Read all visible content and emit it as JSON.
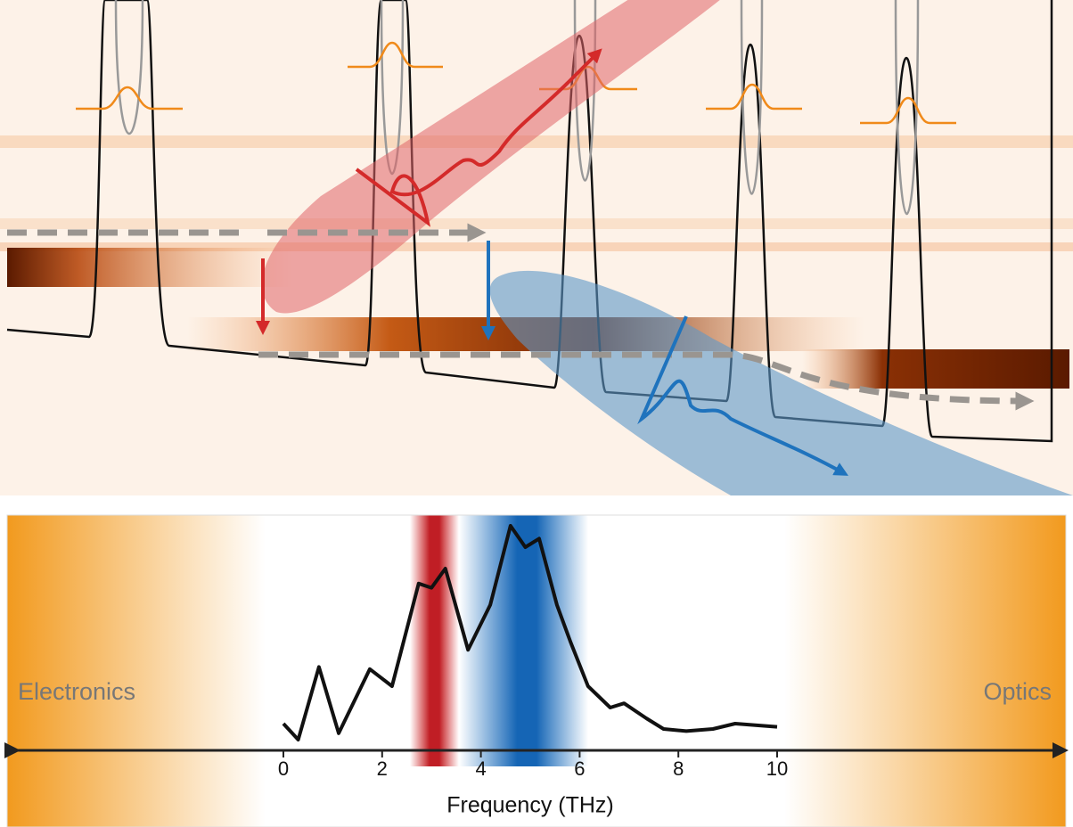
{
  "chart_data": {
    "type": "line",
    "xlabel": "Frequency (THz)",
    "annotations": [
      "Electronics",
      "Optics"
    ],
    "x": [
      0,
      0.3,
      0.72,
      1.12,
      1.75,
      2.2,
      2.74,
      3.0,
      3.28,
      3.74,
      4.19,
      4.6,
      4.9,
      5.18,
      5.54,
      5.81,
      6.17,
      6.62,
      6.9,
      7.35,
      7.7,
      8.16,
      8.7,
      9.15,
      10
    ],
    "series": [
      {
        "color": "#111111",
        "values": [
          0.075,
          0,
          0.34,
          0.03,
          0.33,
          0.25,
          0.73,
          0.71,
          0.8,
          0.42,
          0.63,
          1.0,
          0.9,
          0.94,
          0.63,
          0.46,
          0.25,
          0.15,
          0.17,
          0.1,
          0.05,
          0.04,
          0.05,
          0.075,
          0.06
        ]
      }
    ],
    "xlim": [
      0,
      10
    ],
    "xticks": [
      0,
      2,
      4,
      6,
      8,
      10
    ],
    "ylim": [
      0,
      1
    ]
  }
}
